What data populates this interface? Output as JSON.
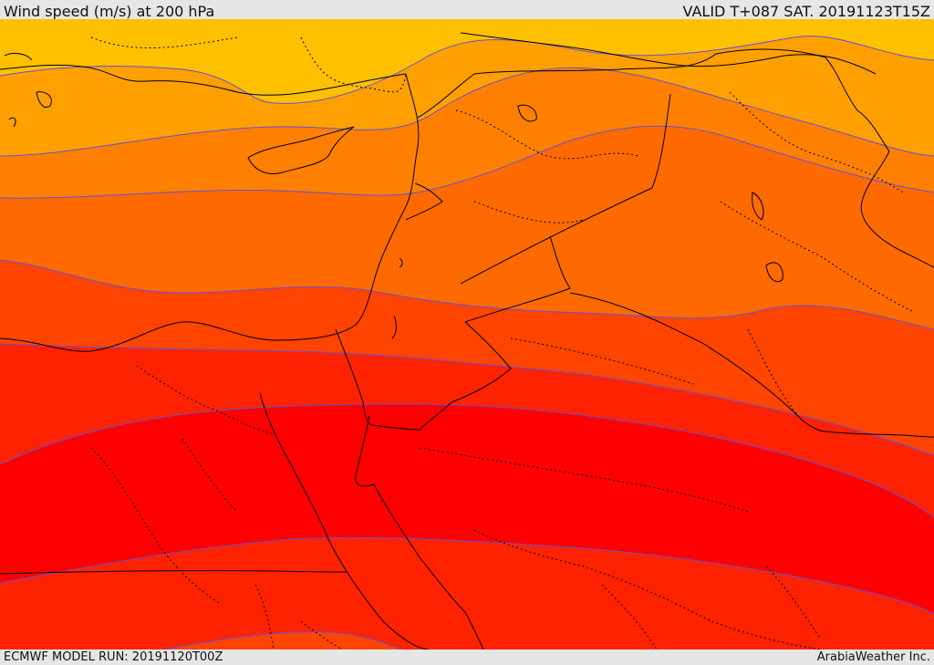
{
  "header": {
    "title": "Wind speed (m/s) at 200 hPa",
    "valid": "VALID T+087 SAT. 20191123T15Z"
  },
  "footer": {
    "model_run": "ECMWF MODEL RUN: 20191120T00Z",
    "credit": "ArabiaWeather Inc."
  },
  "colors": {
    "band1": "#ffc000",
    "band2": "#ffa000",
    "band3": "#ff8000",
    "band4": "#ff6a00",
    "band5": "#ff4400",
    "band6": "#ff2200",
    "band7": "#ff0000",
    "contour": "#6a4fd1",
    "border": "#000000"
  }
}
